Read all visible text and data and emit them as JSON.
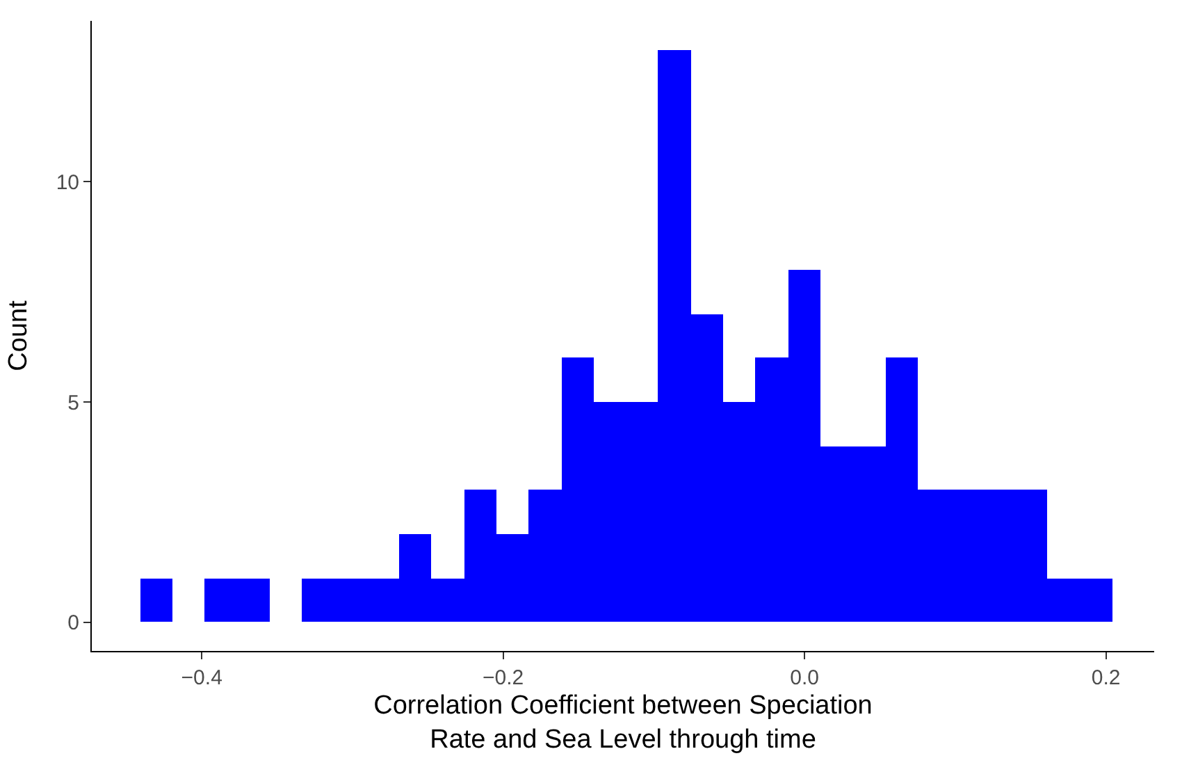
{
  "chart_data": {
    "type": "histogram",
    "xlabel": "Correlation Coefficient between Speciation\nRate and Sea Level through time",
    "ylabel": "Count",
    "color": "#0000ff",
    "bins": [
      -0.441,
      -0.4195,
      -0.398,
      -0.3765,
      -0.355,
      -0.3335,
      -0.312,
      -0.2905,
      -0.269,
      -0.2475,
      -0.226,
      -0.2045,
      -0.183,
      -0.1615,
      -0.14,
      -0.1185,
      -0.097,
      -0.0755,
      -0.054,
      -0.0325,
      -0.011,
      0.0105,
      0.032,
      0.0535,
      0.075,
      0.0965,
      0.118,
      0.1395,
      0.161,
      0.1825,
      0.204
    ],
    "values": [
      1,
      0,
      1,
      1,
      0,
      1,
      1,
      1,
      2,
      1,
      3,
      2,
      3,
      6,
      5,
      5,
      13,
      7,
      5,
      6,
      8,
      4,
      4,
      6,
      3,
      3,
      3,
      3,
      1,
      1
    ],
    "xlim": [
      -0.473,
      0.232
    ],
    "ylim": [
      -0.65,
      13.65
    ],
    "xticks": [
      {
        "value": -0.4,
        "label": "−0.4"
      },
      {
        "value": -0.2,
        "label": "−0.2"
      },
      {
        "value": 0.0,
        "label": "0.0"
      },
      {
        "value": 0.2,
        "label": "0.2"
      }
    ],
    "yticks": [
      0,
      5,
      10
    ]
  }
}
